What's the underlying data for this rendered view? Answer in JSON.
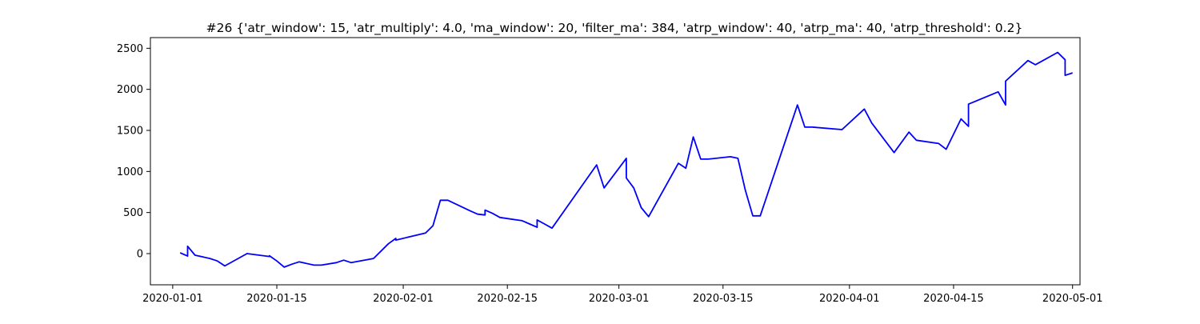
{
  "chart_data": {
    "type": "line",
    "title": "#26 {'atr_window': 15, 'atr_multiply': 4.0, 'ma_window': 20, 'filter_ma': 384, 'atrp_window': 40, 'atrp_ma': 40, 'atrp_threshold': 0.2}",
    "xlabel": "",
    "ylabel": "",
    "x_axis_type": "date",
    "xlim": [
      "2019-12-29",
      "2020-05-02"
    ],
    "ylim": [
      -380,
      2630
    ],
    "grid": false,
    "line_color": "#0000ff",
    "x_ticks": [
      "2020-01-01",
      "2020-01-15",
      "2020-02-01",
      "2020-02-15",
      "2020-03-01",
      "2020-03-15",
      "2020-04-01",
      "2020-04-15",
      "2020-05-01"
    ],
    "y_ticks": [
      0,
      500,
      1000,
      1500,
      2000,
      2500
    ],
    "series": [
      {
        "x": [
          "2020-01-02",
          "2020-01-03",
          "2020-01-03",
          "2020-01-04",
          "2020-01-06",
          "2020-01-07",
          "2020-01-08",
          "2020-01-11",
          "2020-01-14",
          "2020-01-14",
          "2020-01-15",
          "2020-01-16",
          "2020-01-17",
          "2020-01-18",
          "2020-01-20",
          "2020-01-21",
          "2020-01-23",
          "2020-01-24",
          "2020-01-25",
          "2020-01-28",
          "2020-01-30",
          "2020-01-31",
          "2020-01-31",
          "2020-02-04",
          "2020-02-05",
          "2020-02-06",
          "2020-02-07",
          "2020-02-10",
          "2020-02-11",
          "2020-02-12",
          "2020-02-12",
          "2020-02-13",
          "2020-02-14",
          "2020-02-17",
          "2020-02-18",
          "2020-02-19",
          "2020-02-19",
          "2020-02-20",
          "2020-02-21",
          "2020-02-27",
          "2020-02-28",
          "2020-03-02",
          "2020-03-02",
          "2020-03-03",
          "2020-03-04",
          "2020-03-05",
          "2020-03-09",
          "2020-03-10",
          "2020-03-11",
          "2020-03-12",
          "2020-03-13",
          "2020-03-16",
          "2020-03-17",
          "2020-03-18",
          "2020-03-19",
          "2020-03-20",
          "2020-03-25",
          "2020-03-26",
          "2020-03-27",
          "2020-03-31",
          "2020-04-03",
          "2020-04-04",
          "2020-04-07",
          "2020-04-09",
          "2020-04-10",
          "2020-04-13",
          "2020-04-14",
          "2020-04-16",
          "2020-04-17",
          "2020-04-17",
          "2020-04-21",
          "2020-04-22",
          "2020-04-22",
          "2020-04-25",
          "2020-04-26",
          "2020-04-29",
          "2020-04-30",
          "2020-04-30",
          "2020-05-01"
        ],
        "y": [
          10,
          -30,
          90,
          -20,
          -60,
          -90,
          -150,
          0,
          -35,
          -25,
          -90,
          -165,
          -130,
          -100,
          -140,
          -140,
          -110,
          -80,
          -110,
          -60,
          120,
          185,
          165,
          250,
          340,
          650,
          650,
          520,
          480,
          470,
          530,
          490,
          440,
          400,
          360,
          320,
          410,
          360,
          310,
          1080,
          800,
          1160,
          920,
          800,
          560,
          450,
          1100,
          1040,
          1420,
          1150,
          1150,
          1180,
          1160,
          770,
          460,
          460,
          1810,
          1540,
          1540,
          1510,
          1760,
          1590,
          1230,
          1480,
          1380,
          1340,
          1270,
          1640,
          1550,
          1820,
          1970,
          1810,
          2100,
          2350,
          2300,
          2450,
          2360,
          2170,
          2200
        ]
      }
    ]
  }
}
